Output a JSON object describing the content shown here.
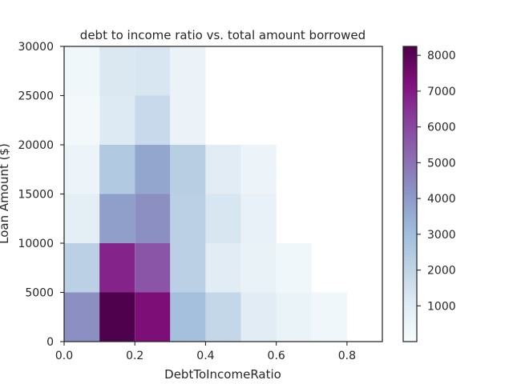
{
  "chart_data": {
    "type": "heatmap",
    "title": "debt to income ratio vs. total amount borrowed",
    "xlabel": "DebtToIncomeRatio",
    "ylabel": "Loan Amount ($)",
    "xlim": [
      0,
      0.9
    ],
    "ylim": [
      0,
      30000
    ],
    "x_bin_edges": [
      0,
      0.1,
      0.2,
      0.3,
      0.4,
      0.5,
      0.6,
      0.7,
      0.8,
      0.9
    ],
    "y_bin_edges": [
      0,
      5000,
      10000,
      15000,
      20000,
      25000,
      30000
    ],
    "xticks": [
      0.0,
      0.2,
      0.4,
      0.6,
      0.8
    ],
    "xtick_labels": [
      "0.0",
      "0.2",
      "0.4",
      "0.6",
      "0.8"
    ],
    "yticks": [
      0,
      5000,
      10000,
      15000,
      20000,
      25000,
      30000
    ],
    "ytick_labels": [
      "0",
      "5000",
      "10000",
      "15000",
      "20000",
      "25000",
      "30000"
    ],
    "counts": [
      [
        4300,
        8200,
        7300,
        2900,
        1900,
        1000,
        600,
        350,
        0
      ],
      [
        2200,
        6800,
        5700,
        2200,
        1000,
        650,
        300,
        0,
        0
      ],
      [
        900,
        3900,
        4300,
        2200,
        1300,
        700,
        0,
        0,
        0
      ],
      [
        500,
        2500,
        3700,
        2300,
        1000,
        500,
        0,
        0,
        0
      ],
      [
        200,
        1100,
        1800,
        550,
        0,
        0,
        0,
        0,
        0
      ],
      [
        300,
        1200,
        1300,
        550,
        0,
        0,
        0,
        0,
        0
      ]
    ],
    "colormap": "BuPu",
    "colorbar": {
      "min": 1,
      "max": 8250,
      "ticks": [
        1000,
        2000,
        3000,
        4000,
        5000,
        6000,
        7000,
        8000
      ],
      "tick_labels": [
        "1000",
        "2000",
        "3000",
        "4000",
        "5000",
        "6000",
        "7000",
        "8000"
      ]
    },
    "grid": false
  }
}
